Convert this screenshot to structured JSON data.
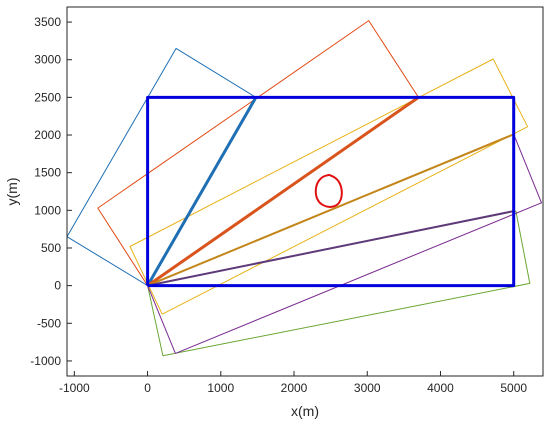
{
  "chart_data": {
    "type": "line",
    "xlabel": "x(m)",
    "ylabel": "y(m)",
    "xlim": [
      -1100,
      5400
    ],
    "ylim": [
      -1200,
      3700
    ],
    "xticks": [
      -1000,
      0,
      1000,
      2000,
      3000,
      4000,
      5000
    ],
    "yticks": [
      -1000,
      -500,
      0,
      500,
      1000,
      1500,
      2000,
      2500,
      3000,
      3500
    ],
    "grid": false,
    "series": [
      {
        "color": "#1f6fb4",
        "width": 1,
        "x": [
          0,
          1480,
          390,
          -1100,
          0
        ],
        "y": [
          0,
          2500,
          3150,
          650,
          0
        ]
      },
      {
        "color": "#e04a12",
        "width": 1,
        "x": [
          0,
          3700,
          3020,
          -680,
          0
        ],
        "y": [
          0,
          2500,
          3520,
          1030,
          0
        ]
      },
      {
        "color": "#e8b21a",
        "width": 1,
        "x": [
          200,
          5190,
          4720,
          -240,
          200
        ],
        "y": [
          -380,
          2110,
          3010,
          520,
          -380
        ]
      },
      {
        "color": "#6aa632",
        "width": 1,
        "x": [
          210,
          5220,
          5030,
          0,
          210
        ],
        "y": [
          -930,
          30,
          990,
          0,
          -930
        ]
      },
      {
        "color": "#7a2a90",
        "width": 1,
        "x": [
          380,
          5380,
          5000,
          0,
          380
        ],
        "y": [
          -900,
          1100,
          2010,
          0,
          -900
        ]
      },
      {
        "color": "#1f6fb4",
        "width": 3,
        "x": [
          0,
          1480
        ],
        "y": [
          0,
          2500
        ]
      },
      {
        "color": "#d9541c",
        "width": 3,
        "x": [
          0,
          3700
        ],
        "y": [
          0,
          2500
        ]
      },
      {
        "color": "#c2861a",
        "width": 2,
        "x": [
          0,
          5000
        ],
        "y": [
          0,
          2010
        ]
      },
      {
        "color": "#5e3a7a",
        "width": 2,
        "x": [
          0,
          5000
        ],
        "y": [
          0,
          990
        ]
      },
      {
        "color": "#0000dd",
        "width": 3,
        "x": [
          0,
          5000,
          5000,
          0,
          0
        ],
        "y": [
          0,
          0,
          2500,
          2500,
          0
        ]
      },
      {
        "color": "#e01010",
        "width": 2,
        "closed_curve": true,
        "x": [
          2480,
          2570,
          2640,
          2660,
          2620,
          2530,
          2430,
          2330,
          2290,
          2310,
          2390,
          2480
        ],
        "y": [
          1470,
          1440,
          1340,
          1210,
          1090,
          1040,
          1050,
          1110,
          1230,
          1360,
          1450,
          1470
        ]
      }
    ]
  }
}
